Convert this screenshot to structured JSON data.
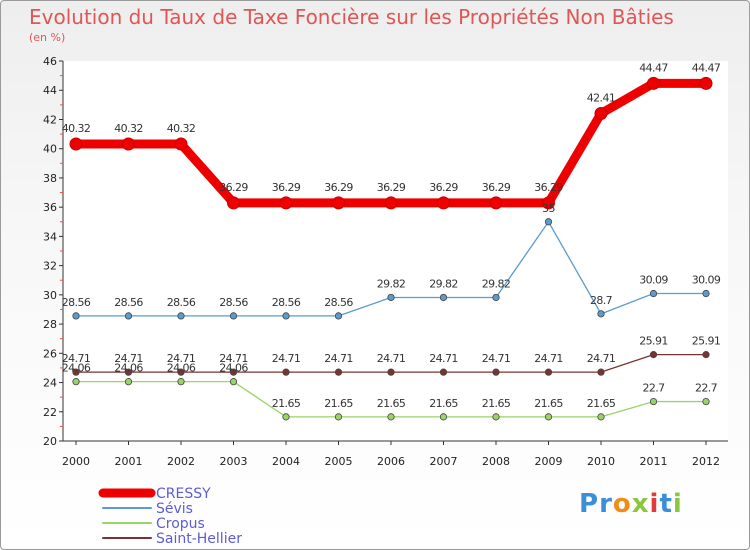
{
  "chart_data": {
    "type": "line",
    "title": "Evolution du Taux de Taxe Foncière sur les Propriétés Non Bâties",
    "subtitle": "(en %)",
    "categories": [
      "2000",
      "2001",
      "2002",
      "2003",
      "2004",
      "2005",
      "2006",
      "2007",
      "2008",
      "2009",
      "2010",
      "2011",
      "2012"
    ],
    "ylim": [
      20,
      46
    ],
    "yticks": [
      20,
      22,
      24,
      26,
      28,
      30,
      32,
      34,
      36,
      38,
      40,
      42,
      44,
      46
    ],
    "series": [
      {
        "name": "CRESSY",
        "color": "#ee0000",
        "values": [
          40.32,
          40.32,
          40.32,
          36.29,
          36.29,
          36.29,
          36.29,
          36.29,
          36.29,
          36.29,
          42.41,
          44.47,
          44.47
        ],
        "labels": [
          "40.32",
          "40.32",
          "40.32",
          "36.29",
          "36.29",
          "36.29",
          "36.29",
          "36.29",
          "36.29",
          "36.29",
          "42.41",
          "44.47",
          "44.47"
        ]
      },
      {
        "name": "Sévis",
        "color": "#5b9bcf",
        "values": [
          28.56,
          28.56,
          28.56,
          28.56,
          28.56,
          28.56,
          29.82,
          29.82,
          29.82,
          35,
          28.7,
          30.09,
          30.09
        ],
        "labels": [
          "28.56",
          "28.56",
          "28.56",
          "28.56",
          "28.56",
          "28.56",
          "29.82",
          "29.82",
          "29.82",
          "35",
          "28.7",
          "30.09",
          "30.09"
        ]
      },
      {
        "name": "Cropus",
        "color": "#99d466",
        "values": [
          24.06,
          24.06,
          24.06,
          24.06,
          21.65,
          21.65,
          21.65,
          21.65,
          21.65,
          21.65,
          21.65,
          22.7,
          22.7
        ],
        "labels": [
          "24.06",
          "24.06",
          "24.06",
          "24.06",
          "21.65",
          "21.65",
          "21.65",
          "21.65",
          "21.65",
          "21.65",
          "21.65",
          "22.7",
          "22.7"
        ]
      },
      {
        "name": "Saint-Hellier",
        "color": "#7a3333",
        "values": [
          24.71,
          24.71,
          24.71,
          24.71,
          24.71,
          24.71,
          24.71,
          24.71,
          24.71,
          24.71,
          24.71,
          25.91,
          25.91
        ],
        "labels": [
          "24.71",
          "24.71",
          "24.71",
          "24.71",
          "24.71",
          "24.71",
          "24.71",
          "24.71",
          "24.71",
          "24.71",
          "24.71",
          "25.91",
          "25.91"
        ]
      }
    ],
    "grid": false,
    "legend": "bottom-left"
  },
  "brand": {
    "logo_text": "Proxiti",
    "letters": [
      "P",
      "r",
      "o",
      "x",
      "i",
      "t",
      "i"
    ],
    "letter_colors": [
      "#3a8fd6",
      "#3a8fd6",
      "#f08c1a",
      "#8cc63e",
      "#e03a3a",
      "#3a8fd6",
      "#8cc63e"
    ]
  }
}
